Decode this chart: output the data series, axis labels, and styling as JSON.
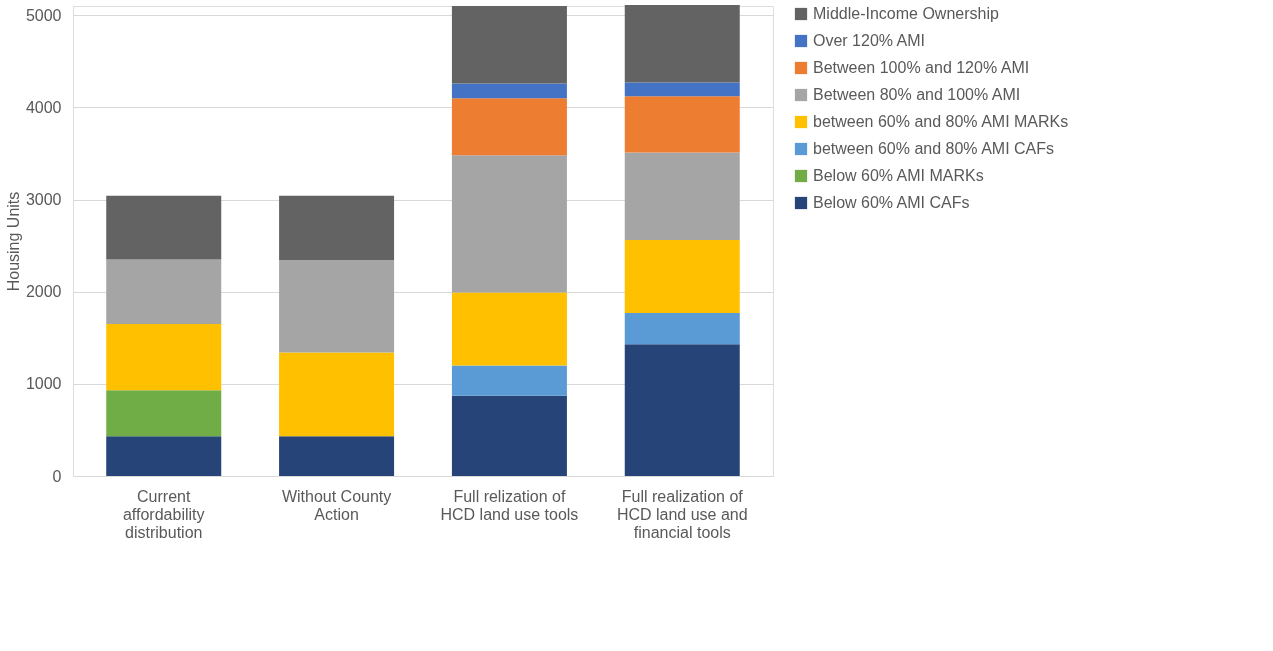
{
  "chart_data": {
    "type": "bar",
    "stacked": true,
    "ylabel": "Housing Units",
    "categories": [
      "Current affordability distribution",
      "Without County Action",
      "Full relization of HCD land use tools",
      "Full realization of HCD land use and financial tools"
    ],
    "series": [
      {
        "name": "Below 60% AMI CAFs",
        "color": "#264478",
        "values": [
          430,
          430,
          870,
          1430
        ]
      },
      {
        "name": "Below 60% AMI MARKs",
        "color": "#70ad47",
        "values": [
          500,
          null,
          null,
          null
        ]
      },
      {
        "name": "between 60% and 80% AMI CAFs",
        "color": "#5b9bd5",
        "values": [
          null,
          null,
          330,
          340
        ]
      },
      {
        "name": "between 60% and 80% AMI MARKs",
        "color": "#ffc000",
        "values": [
          720,
          910,
          790,
          790
        ]
      },
      {
        "name": "Between 80% and 100% AMI",
        "color": "#a5a5a5",
        "values": [
          700,
          1000,
          1490,
          950
        ]
      },
      {
        "name": "Between 100% and 120% AMI",
        "color": "#ed7d31",
        "values": [
          null,
          null,
          620,
          610
        ]
      },
      {
        "name": "Over 120% AMI",
        "color": "#4472c4",
        "values": [
          null,
          null,
          160,
          150
        ]
      },
      {
        "name": "Middle-Income Ownership",
        "color": "#636363",
        "values": [
          690,
          700,
          840,
          840
        ]
      }
    ],
    "ylim": [
      0,
      5100
    ],
    "yticks": [
      0,
      1000,
      2000,
      3000,
      4000,
      5000
    ],
    "grid": "y",
    "legend": "right"
  }
}
